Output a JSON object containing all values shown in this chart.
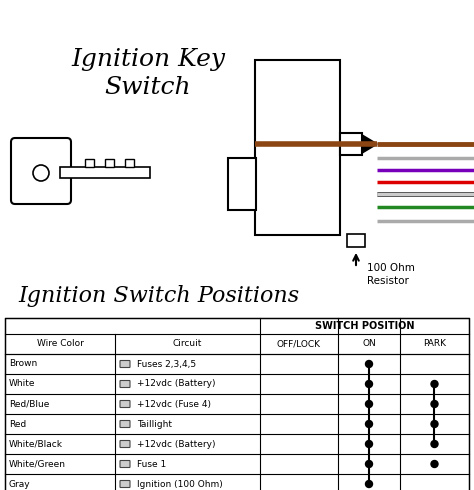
{
  "title_diagram": "Ignition Key\nSwitch",
  "title_table": "Ignition Switch Positions",
  "bg_color": "#ffffff",
  "wire_labels": [
    "Brown",
    "White",
    "Red/Blue",
    "Red",
    "White/Black",
    "White/Green",
    "Gray"
  ],
  "circuit_labels": [
    "Fuses 2,3,4,5",
    "+12vdc (Battery)",
    "+12vdc (Fuse 4)",
    "Taillight",
    "+12vdc (Battery)",
    "Fuse 1",
    "Ignition (100 Ohm)"
  ],
  "on_dots": [
    true,
    true,
    true,
    true,
    true,
    true,
    true
  ],
  "park_dots": [
    false,
    true,
    true,
    true,
    true,
    true,
    false
  ],
  "on_connected": [
    true,
    true,
    true,
    true,
    true,
    true,
    false
  ],
  "park_connected": [
    false,
    true,
    true,
    true,
    false,
    false,
    false
  ],
  "wire_line_colors": [
    "#8B4513",
    "#bbbbbb",
    "#7700bb",
    "#dd0000",
    "#bbbbbb",
    "#228822",
    "#aaaaaa"
  ],
  "brown_wire": "#8B4513",
  "white_wire": "#cccccc",
  "purple_wire": "#7700bb",
  "red_wire": "#dd0000",
  "green_wire": "#228822",
  "gray_wire": "#aaaaaa"
}
